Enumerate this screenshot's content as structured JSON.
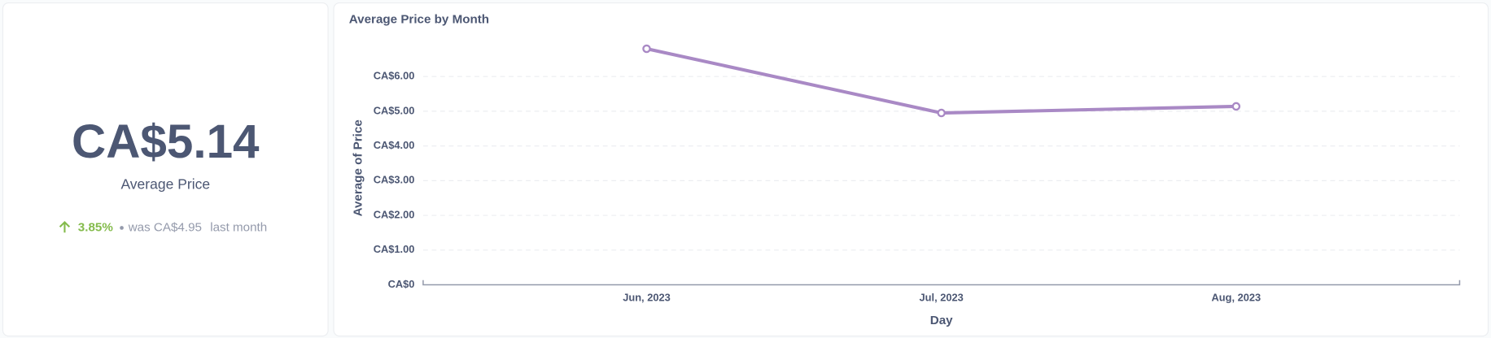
{
  "kpi": {
    "value": "CA$5.14",
    "label": "Average Price",
    "change": "3.85%",
    "previous": "was CA$4.95",
    "period": "last month"
  },
  "chart_data": {
    "type": "line",
    "title": "Average Price by Month",
    "categories": [
      "Jun, 2023",
      "Jul, 2023",
      "Aug, 2023"
    ],
    "series": [
      {
        "name": "Average of Price",
        "color": "#a989c5",
        "values": [
          6.8,
          4.95,
          5.14
        ]
      }
    ],
    "xlabel": "Day",
    "ylabel": "Average of Price",
    "ylim": [
      0,
      7
    ],
    "yticks": [
      {
        "value": 0,
        "label": "CA$0"
      },
      {
        "value": 1,
        "label": "CA$1.00"
      },
      {
        "value": 2,
        "label": "CA$2.00"
      },
      {
        "value": 3,
        "label": "CA$3.00"
      },
      {
        "value": 4,
        "label": "CA$4.00"
      },
      {
        "value": 5,
        "label": "CA$5.00"
      },
      {
        "value": 6,
        "label": "CA$6.00"
      }
    ],
    "grid": true
  }
}
